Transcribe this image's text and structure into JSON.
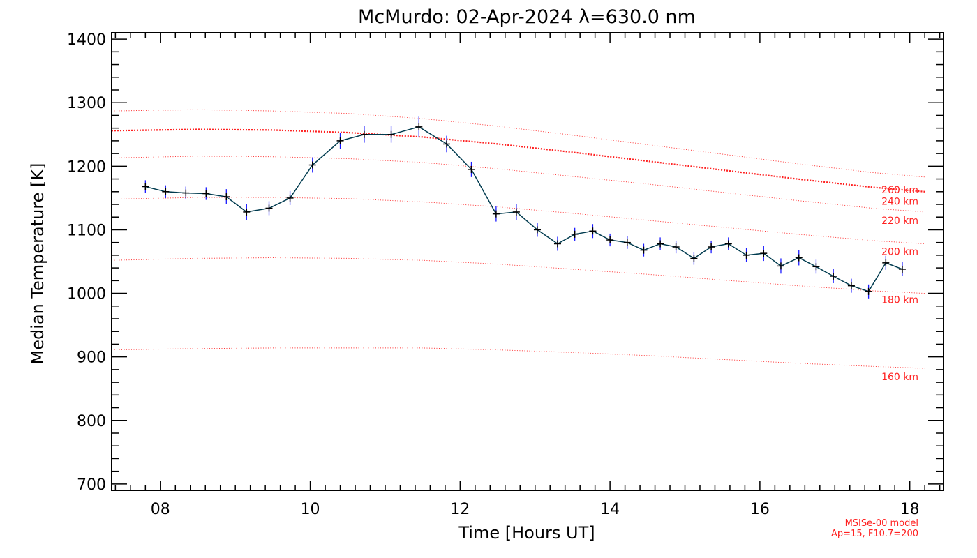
{
  "chart_data": {
    "type": "line",
    "title": "McMurdo: 02-Apr-2024 λ=630.0 nm",
    "xlabel": "Time [Hours UT]",
    "ylabel": "Median Temperature [K]",
    "xlim": [
      7.35,
      18.45
    ],
    "ylim": [
      690,
      1410
    ],
    "xticks": [
      8,
      10,
      12,
      14,
      16,
      18
    ],
    "xtick_labels": [
      "08",
      "10",
      "12",
      "14",
      "16",
      "18"
    ],
    "yticks": [
      700,
      800,
      900,
      1000,
      1100,
      1200,
      1300,
      1400
    ],
    "ytick_labels": [
      "700",
      "800",
      "900",
      "1000",
      "1100",
      "1200",
      "1300",
      "1400"
    ],
    "grid": false,
    "colors": {
      "series": "#003b4f",
      "points": "#000000",
      "errorbars": "#1a1aff",
      "model": "#ff2020"
    },
    "series": [
      {
        "x": [
          7.8,
          8.07,
          8.34,
          8.61,
          8.88,
          9.15,
          9.45,
          9.73,
          10.03,
          10.4,
          10.72,
          11.08,
          11.45,
          11.82,
          12.15,
          12.48,
          12.75,
          13.03,
          13.3,
          13.53,
          13.77,
          14.0,
          14.23,
          14.45,
          14.67,
          14.88,
          15.12,
          15.35,
          15.58,
          15.82,
          16.05,
          16.28,
          16.52,
          16.75,
          16.98,
          17.22,
          17.45,
          17.68,
          17.9
        ],
        "y": [
          1168,
          1160,
          1158,
          1157,
          1152,
          1128,
          1134,
          1150,
          1202,
          1240,
          1250,
          1250,
          1262,
          1235,
          1195,
          1125,
          1128,
          1100,
          1078,
          1093,
          1098,
          1084,
          1080,
          1068,
          1078,
          1073,
          1055,
          1073,
          1078,
          1060,
          1063,
          1043,
          1056,
          1042,
          1027,
          1012,
          1003,
          1048,
          1038
        ],
        "err": [
          10,
          10,
          10,
          10,
          12,
          13,
          11,
          11,
          12,
          13,
          13,
          13,
          16,
          13,
          12,
          12,
          13,
          11,
          11,
          10,
          11,
          10,
          10,
          10,
          10,
          10,
          10,
          10,
          10,
          11,
          12,
          12,
          12,
          11,
          11,
          11,
          11,
          11,
          11
        ]
      }
    ],
    "model_x": [
      7.35,
      8.5,
      9.5,
      10.5,
      11.5,
      12.5,
      13.5,
      14.5,
      15.5,
      16.5,
      17.5,
      18.2
    ],
    "model_curves": [
      {
        "label": "160 km",
        "y": [
          911,
          913,
          914,
          914,
          914,
          911,
          907,
          902,
          896,
          890,
          885,
          882
        ],
        "highlight": false
      },
      {
        "label": "180 km",
        "y": [
          1052,
          1055,
          1056,
          1055,
          1052,
          1046,
          1038,
          1030,
          1021,
          1012,
          1004,
          1000
        ],
        "highlight": false
      },
      {
        "label": "200 km",
        "y": [
          1148,
          1151,
          1151,
          1149,
          1144,
          1136,
          1126,
          1115,
          1104,
          1093,
          1083,
          1078
        ],
        "highlight": false
      },
      {
        "label": "220 km",
        "y": [
          1213,
          1216,
          1215,
          1212,
          1206,
          1196,
          1184,
          1172,
          1159,
          1146,
          1134,
          1128
        ],
        "highlight": false
      },
      {
        "label": "240 km",
        "y": [
          1256,
          1258,
          1257,
          1253,
          1246,
          1235,
          1222,
          1208,
          1194,
          1180,
          1167,
          1160
        ],
        "highlight": true
      },
      {
        "label": "260 km",
        "y": [
          1287,
          1289,
          1287,
          1283,
          1275,
          1263,
          1249,
          1234,
          1219,
          1204,
          1190,
          1183
        ],
        "highlight": false
      }
    ],
    "model_label_y": [
      1163,
      1145,
      1115,
      1066,
      990,
      869
    ],
    "model_label_text": [
      "260 km",
      "240 km",
      "220 km",
      "200 km",
      "180 km",
      "160 km"
    ],
    "model_note": [
      "MSISe-00 model",
      "Ap=15, F10.7=200"
    ]
  }
}
